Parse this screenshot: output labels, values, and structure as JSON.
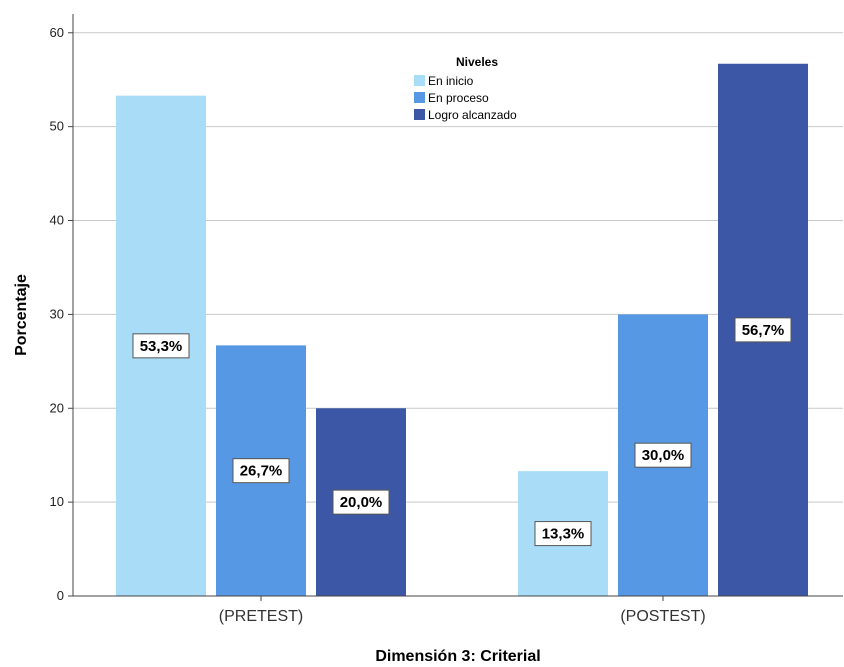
{
  "chart_data": {
    "type": "bar",
    "categories": [
      "(PRETEST)",
      "(POSTEST)"
    ],
    "series": [
      {
        "name": "En inicio",
        "color": "#a8dcf7",
        "values": [
          53.3,
          13.3
        ],
        "labels": [
          "53,3%",
          "13,3%"
        ]
      },
      {
        "name": "En proceso",
        "color": "#5698e3",
        "values": [
          26.7,
          30.0
        ],
        "labels": [
          "26,7%",
          "30,0%"
        ]
      },
      {
        "name": "Logro alcanzado",
        "color": "#3d57a7",
        "values": [
          20.0,
          56.7
        ],
        "labels": [
          "20,0%",
          "56,7%"
        ]
      }
    ],
    "xlabel": "Dimensión 3: Criterial",
    "ylabel": "Porcentaje",
    "ylim": [
      0,
      62
    ],
    "yticks": [
      0,
      10,
      20,
      30,
      40,
      50,
      60
    ],
    "grid": true,
    "legend_title": "Niveles",
    "legend_position": "top-center"
  }
}
